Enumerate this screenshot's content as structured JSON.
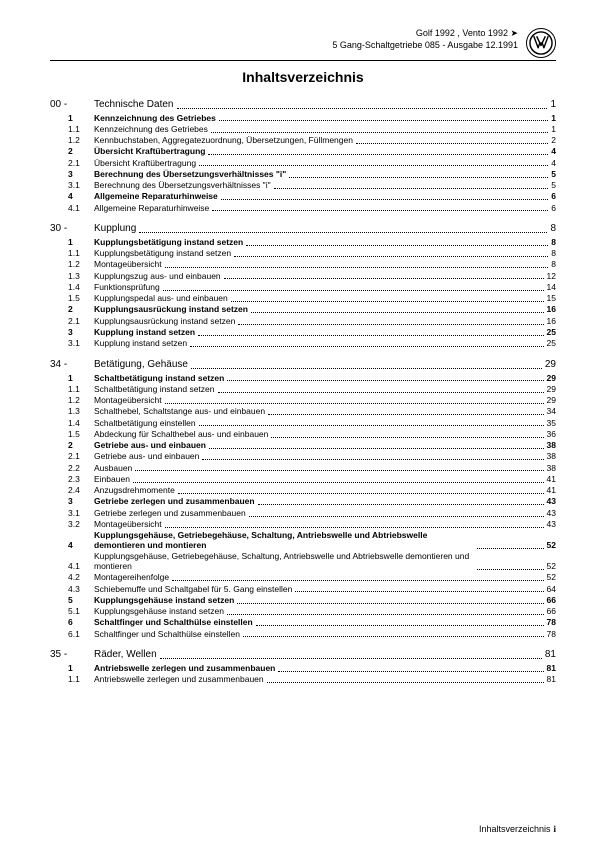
{
  "header": {
    "line1": "Golf 1992 , Vento 1992 ➤",
    "line2": "5 Gang-Schaltgetriebe 085 - Ausgabe 12.1991"
  },
  "title": "Inhaltsverzeichnis",
  "footer": "Inhaltsverzeichnis",
  "footer_page": "i",
  "sections": [
    {
      "num": "00 -",
      "label": "Technische Daten",
      "page": "1",
      "items": [
        {
          "idx": "1",
          "label": "Kennzeichnung des Getriebes",
          "page": "1",
          "bold": true
        },
        {
          "idx": "1.1",
          "label": "Kennzeichnung des Getriebes",
          "page": "1"
        },
        {
          "idx": "1.2",
          "label": "Kennbuchstaben, Aggregatezuordnung, Übersetzungen, Füllmengen",
          "page": "2"
        },
        {
          "idx": "2",
          "label": "Übersicht Kraftübertragung",
          "page": "4",
          "bold": true
        },
        {
          "idx": "2.1",
          "label": "Übersicht Kraftübertragung",
          "page": "4"
        },
        {
          "idx": "3",
          "label": "Berechnung des Übersetzungsverhältnisses \"i\"",
          "page": "5",
          "bold": true
        },
        {
          "idx": "3.1",
          "label": "Berechnung des Übersetzungsverhältnisses \"i\"",
          "page": "5"
        },
        {
          "idx": "4",
          "label": "Allgemeine Reparaturhinweise",
          "page": "6",
          "bold": true
        },
        {
          "idx": "4.1",
          "label": "Allgemeine Reparaturhinweise",
          "page": "6"
        }
      ]
    },
    {
      "num": "30 -",
      "label": "Kupplung",
      "page": "8",
      "items": [
        {
          "idx": "1",
          "label": "Kupplungsbetätigung instand setzen",
          "page": "8",
          "bold": true
        },
        {
          "idx": "1.1",
          "label": "Kupplungsbetätigung instand setzen",
          "page": "8"
        },
        {
          "idx": "1.2",
          "label": "Montageübersicht",
          "page": "8"
        },
        {
          "idx": "1.3",
          "label": "Kupplungszug aus- und einbauen",
          "page": "12"
        },
        {
          "idx": "1.4",
          "label": "Funktionsprüfung",
          "page": "14"
        },
        {
          "idx": "1.5",
          "label": "Kupplungspedal aus- und einbauen",
          "page": "15"
        },
        {
          "idx": "2",
          "label": "Kupplungsausrückung instand setzen",
          "page": "16",
          "bold": true
        },
        {
          "idx": "2.1",
          "label": "Kupplungsausrückung instand setzen",
          "page": "16"
        },
        {
          "idx": "3",
          "label": "Kupplung instand setzen",
          "page": "25",
          "bold": true
        },
        {
          "idx": "3.1",
          "label": "Kupplung instand setzen",
          "page": "25"
        }
      ]
    },
    {
      "num": "34 -",
      "label": "Betätigung, Gehäuse",
      "page": "29",
      "items": [
        {
          "idx": "1",
          "label": "Schaltbetätigung instand setzen",
          "page": "29",
          "bold": true
        },
        {
          "idx": "1.1",
          "label": "Schaltbetätigung instand setzen",
          "page": "29"
        },
        {
          "idx": "1.2",
          "label": "Montageübersicht",
          "page": "29"
        },
        {
          "idx": "1.3",
          "label": "Schalthebel, Schaltstange aus- und einbauen",
          "page": "34"
        },
        {
          "idx": "1.4",
          "label": "Schaltbetätigung einstellen",
          "page": "35"
        },
        {
          "idx": "1.5",
          "label": "Abdeckung für Schalthebel aus- und einbauen",
          "page": "36"
        },
        {
          "idx": "2",
          "label": "Getriebe aus- und einbauen",
          "page": "38",
          "bold": true
        },
        {
          "idx": "2.1",
          "label": "Getriebe aus- und einbauen",
          "page": "38"
        },
        {
          "idx": "2.2",
          "label": "Ausbauen",
          "page": "38"
        },
        {
          "idx": "2.3",
          "label": "Einbauen",
          "page": "41"
        },
        {
          "idx": "2.4",
          "label": "Anzugsdrehmomente",
          "page": "41"
        },
        {
          "idx": "3",
          "label": "Getriebe zerlegen und zusammenbauen",
          "page": "43",
          "bold": true
        },
        {
          "idx": "3.1",
          "label": "Getriebe zerlegen und zusammenbauen",
          "page": "43"
        },
        {
          "idx": "3.2",
          "label": "Montageübersicht",
          "page": "43"
        },
        {
          "idx": "4",
          "label": "Kupplungsgehäuse, Getriebegehäuse, Schaltung, Antriebswelle und Abtriebswelle demontieren und montieren",
          "page": "52",
          "bold": true,
          "multiline": true
        },
        {
          "idx": "4.1",
          "label": "Kupplungsgehäuse, Getriebegehäuse, Schaltung, Antriebswelle und Abtriebswelle demontieren und montieren",
          "page": "52",
          "multiline": true
        },
        {
          "idx": "4.2",
          "label": "Montagereihenfolge",
          "page": "52"
        },
        {
          "idx": "4.3",
          "label": "Schiebemuffe und Schaltgabel für 5. Gang einstellen",
          "page": "64"
        },
        {
          "idx": "5",
          "label": "Kupplungsgehäuse instand setzen",
          "page": "66",
          "bold": true
        },
        {
          "idx": "5.1",
          "label": "Kupplungsgehäuse instand setzen",
          "page": "66"
        },
        {
          "idx": "6",
          "label": "Schaltfinger und Schalthülse einstellen",
          "page": "78",
          "bold": true
        },
        {
          "idx": "6.1",
          "label": "Schaltfinger und Schalthülse einstellen",
          "page": "78"
        }
      ]
    },
    {
      "num": "35 -",
      "label": "Räder, Wellen",
      "page": "81",
      "items": [
        {
          "idx": "1",
          "label": "Antriebswelle zerlegen und zusammenbauen",
          "page": "81",
          "bold": true
        },
        {
          "idx": "1.1",
          "label": "Antriebswelle zerlegen und zusammenbauen",
          "page": "81"
        }
      ]
    }
  ]
}
